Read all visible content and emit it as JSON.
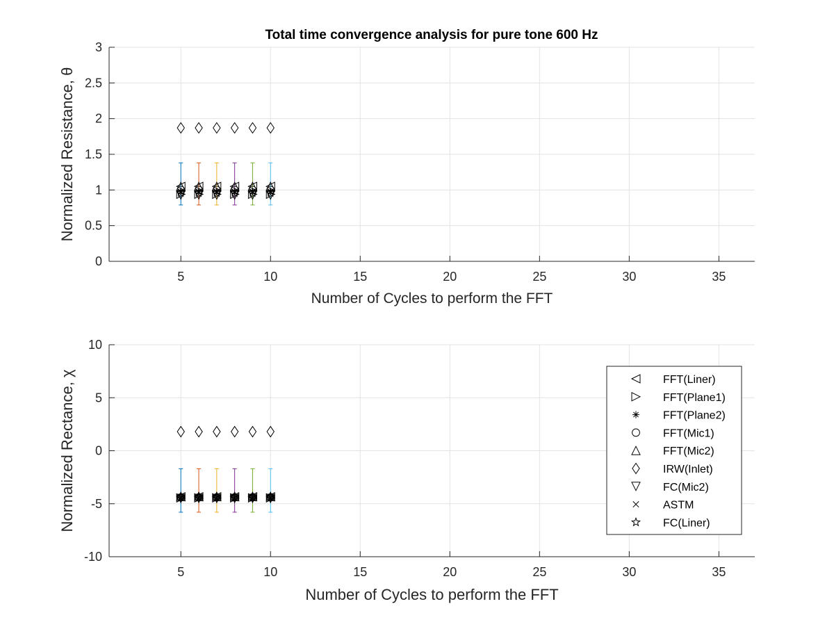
{
  "figure": {
    "title": "Total time convergence analysis for pure tone 600 Hz"
  },
  "chart_data": [
    {
      "type": "scatter",
      "title": "Total time convergence analysis for pure tone 600 Hz",
      "xlabel": "Number of Cycles to perform the FFT",
      "ylabel": "Normalized Resistance, θ",
      "xlim": [
        1,
        37
      ],
      "ylim": [
        0,
        3
      ],
      "xticks": [
        5,
        10,
        15,
        20,
        25,
        30,
        35
      ],
      "yticks": [
        "0",
        "0.5",
        "1",
        "1.5",
        "2",
        "2.5",
        "3"
      ],
      "grid": true,
      "x": [
        5,
        6,
        7,
        8,
        9,
        10
      ],
      "errorbars": {
        "low": 0.79,
        "high": 1.38,
        "colors": [
          "#0072BD",
          "#D95319",
          "#EDB120",
          "#7E2F8E",
          "#77AC30",
          "#4DBEEE"
        ]
      },
      "series": [
        {
          "name": "FFT(Liner)",
          "marker": "triangle-left",
          "values": [
            1.05,
            1.05,
            1.05,
            1.05,
            1.05,
            1.05
          ]
        },
        {
          "name": "FFT(Plane1)",
          "marker": "triangle-right",
          "values": [
            0.94,
            0.94,
            0.94,
            0.94,
            0.94,
            0.94
          ]
        },
        {
          "name": "FFT(Plane2)",
          "marker": "asterisk",
          "values": [
            0.98,
            0.98,
            0.98,
            0.98,
            0.98,
            0.98
          ]
        },
        {
          "name": "FFT(Mic1)",
          "marker": "circle",
          "values": [
            1.0,
            1.0,
            1.0,
            1.0,
            1.0,
            1.0
          ]
        },
        {
          "name": "FFT(Mic2)",
          "marker": "triangle-up",
          "values": [
            1.05,
            1.05,
            1.05,
            1.05,
            1.05,
            1.05
          ]
        },
        {
          "name": "IRW(Inlet)",
          "marker": "diamond",
          "values": [
            1.87,
            1.87,
            1.87,
            1.87,
            1.87,
            1.87
          ]
        },
        {
          "name": "FC(Mic2)",
          "marker": "triangle-down",
          "values": [
            0.93,
            0.93,
            0.93,
            0.93,
            0.93,
            0.93
          ]
        },
        {
          "name": "ASTM",
          "marker": "cross",
          "values": [
            0.97,
            0.97,
            0.97,
            0.97,
            0.97,
            0.97
          ]
        },
        {
          "name": "FC(Liner)",
          "marker": "star",
          "values": [
            0.96,
            0.96,
            0.96,
            0.96,
            0.96,
            0.96
          ]
        }
      ]
    },
    {
      "type": "scatter",
      "xlabel": "Number of Cycles to perform the FFT",
      "ylabel": "Normalized Rectance, χ",
      "xlim": [
        1,
        37
      ],
      "ylim": [
        -10,
        10
      ],
      "xticks": [
        5,
        10,
        15,
        20,
        25,
        30,
        35
      ],
      "yticks": [
        "-10",
        "-5",
        "0",
        "5",
        "10"
      ],
      "grid": true,
      "legend": "right",
      "x": [
        5,
        6,
        7,
        8,
        9,
        10
      ],
      "errorbars": {
        "low": -5.8,
        "high": -1.7,
        "colors": [
          "#0072BD",
          "#D95319",
          "#EDB120",
          "#7E2F8E",
          "#77AC30",
          "#4DBEEE"
        ]
      },
      "series": [
        {
          "name": "FFT(Liner)",
          "marker": "triangle-left",
          "values": [
            -4.35,
            -4.35,
            -4.35,
            -4.35,
            -4.35,
            -4.35
          ]
        },
        {
          "name": "FFT(Plane1)",
          "marker": "triangle-right",
          "values": [
            -4.45,
            -4.45,
            -4.45,
            -4.45,
            -4.45,
            -4.45
          ]
        },
        {
          "name": "FFT(Plane2)",
          "marker": "asterisk",
          "values": [
            -4.4,
            -4.4,
            -4.4,
            -4.4,
            -4.4,
            -4.4
          ]
        },
        {
          "name": "FFT(Mic1)",
          "marker": "circle",
          "values": [
            -4.4,
            -4.4,
            -4.4,
            -4.4,
            -4.4,
            -4.4
          ]
        },
        {
          "name": "FFT(Mic2)",
          "marker": "triangle-up",
          "values": [
            -4.3,
            -4.3,
            -4.3,
            -4.3,
            -4.3,
            -4.3
          ]
        },
        {
          "name": "IRW(Inlet)",
          "marker": "diamond",
          "values": [
            1.8,
            1.8,
            1.8,
            1.8,
            1.8,
            1.8
          ]
        },
        {
          "name": "FC(Mic2)",
          "marker": "triangle-down",
          "values": [
            -4.5,
            -4.5,
            -4.5,
            -4.5,
            -4.5,
            -4.5
          ]
        },
        {
          "name": "ASTM",
          "marker": "cross",
          "values": [
            -4.45,
            -4.45,
            -4.45,
            -4.45,
            -4.45,
            -4.45
          ]
        },
        {
          "name": "FC(Liner)",
          "marker": "star",
          "values": [
            -4.4,
            -4.4,
            -4.4,
            -4.4,
            -4.4,
            -4.4
          ]
        }
      ]
    }
  ]
}
